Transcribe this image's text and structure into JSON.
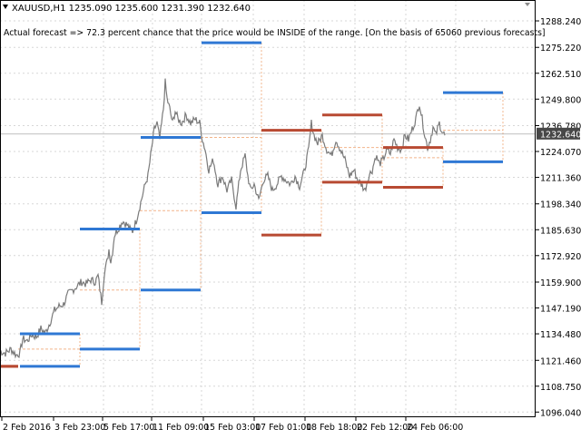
{
  "header": {
    "symbol_line": "XAUUSD,H1  1235.090 1235.600 1231.390 1232.640",
    "forecast_text": "Actual forecast => 72.3 percent chance that the price would be INSIDE of the range. [On the basis of 65060 previous forecasts]"
  },
  "colors": {
    "price_line": "#7a7a7a",
    "range_blue": "#2f78d4",
    "range_red": "#b84a32",
    "connector": "#f2b48a",
    "grid": "#d7d7d7",
    "current_price_bg": "#474747"
  },
  "icons": [
    "dropdown-triangle-icon",
    "chart-shift-arrow-icon"
  ],
  "current_price": "1232.640",
  "chart_data": {
    "type": "line",
    "symbol": "XAUUSD",
    "timeframe": "H1",
    "ylim": [
      1093.5,
      1298.5
    ],
    "y_ticks": [
      "1288.240",
      "1275.220",
      "1262.510",
      "1249.800",
      "1236.780",
      "1224.070",
      "1211.360",
      "1198.340",
      "1185.630",
      "1172.920",
      "1159.900",
      "1147.190",
      "1134.480",
      "1121.460",
      "1108.750",
      "1096.040"
    ],
    "x_ticks": [
      "2 Feb 2016",
      "3 Feb 23:00",
      "5 Feb 17:00",
      "11 Feb 09:00",
      "15 Feb 03:00",
      "17 Feb 01:00",
      "18 Feb 18:00",
      "22 Feb 12:00",
      "24 Feb 06:00"
    ],
    "price_path": [
      [
        0,
        1126
      ],
      [
        6,
        1125
      ],
      [
        12,
        1127
      ],
      [
        18,
        1124
      ],
      [
        22,
        1125
      ],
      [
        25,
        1132
      ],
      [
        30,
        1131
      ],
      [
        35,
        1134
      ],
      [
        40,
        1133
      ],
      [
        45,
        1137
      ],
      [
        50,
        1135
      ],
      [
        55,
        1140
      ],
      [
        60,
        1146
      ],
      [
        65,
        1148
      ],
      [
        70,
        1149
      ],
      [
        75,
        1154
      ],
      [
        80,
        1156
      ],
      [
        85,
        1158
      ],
      [
        90,
        1160
      ],
      [
        95,
        1159
      ],
      [
        100,
        1161
      ],
      [
        105,
        1160
      ],
      [
        108,
        1163
      ],
      [
        112,
        1150
      ],
      [
        115,
        1165
      ],
      [
        118,
        1170
      ],
      [
        120,
        1176
      ],
      [
        122,
        1170
      ],
      [
        124,
        1175
      ],
      [
        126,
        1183
      ],
      [
        130,
        1186
      ],
      [
        135,
        1190
      ],
      [
        140,
        1188
      ],
      [
        143,
        1186
      ],
      [
        146,
        1185
      ],
      [
        150,
        1190
      ],
      [
        155,
        1199
      ],
      [
        160,
        1208
      ],
      [
        163,
        1212
      ],
      [
        166,
        1222
      ],
      [
        170,
        1235
      ],
      [
        173,
        1238
      ],
      [
        176,
        1230
      ],
      [
        180,
        1245
      ],
      [
        182,
        1258
      ],
      [
        184,
        1250
      ],
      [
        187,
        1245
      ],
      [
        190,
        1238
      ],
      [
        193,
        1244
      ],
      [
        196,
        1240
      ],
      [
        200,
        1238
      ],
      [
        205,
        1242
      ],
      [
        210,
        1238
      ],
      [
        215,
        1240
      ],
      [
        220,
        1238
      ],
      [
        223,
        1230
      ],
      [
        226,
        1225
      ],
      [
        230,
        1215
      ],
      [
        235,
        1220
      ],
      [
        240,
        1208
      ],
      [
        245,
        1212
      ],
      [
        250,
        1205
      ],
      [
        255,
        1210
      ],
      [
        260,
        1197
      ],
      [
        265,
        1215
      ],
      [
        270,
        1222
      ],
      [
        273,
        1212
      ],
      [
        276,
        1205
      ],
      [
        280,
        1208
      ],
      [
        285,
        1200
      ],
      [
        290,
        1210
      ],
      [
        295,
        1212
      ],
      [
        300,
        1205
      ],
      [
        305,
        1208
      ],
      [
        310,
        1212
      ],
      [
        315,
        1210
      ],
      [
        320,
        1208
      ],
      [
        325,
        1212
      ],
      [
        330,
        1207
      ],
      [
        335,
        1214
      ],
      [
        340,
        1225
      ],
      [
        343,
        1238
      ],
      [
        346,
        1232
      ],
      [
        350,
        1228
      ],
      [
        355,
        1232
      ],
      [
        360,
        1225
      ],
      [
        365,
        1222
      ],
      [
        370,
        1230
      ],
      [
        375,
        1225
      ],
      [
        380,
        1220
      ],
      [
        385,
        1212
      ],
      [
        390,
        1215
      ],
      [
        394,
        1210
      ],
      [
        398,
        1208
      ],
      [
        402,
        1205
      ],
      [
        406,
        1212
      ],
      [
        410,
        1215
      ],
      [
        414,
        1222
      ],
      [
        418,
        1218
      ],
      [
        422,
        1220
      ],
      [
        426,
        1225
      ],
      [
        430,
        1223
      ],
      [
        434,
        1230
      ],
      [
        438,
        1226
      ],
      [
        442,
        1225
      ],
      [
        446,
        1232
      ],
      [
        450,
        1230
      ],
      [
        454,
        1235
      ],
      [
        458,
        1240
      ],
      [
        462,
        1248
      ],
      [
        465,
        1240
      ],
      [
        468,
        1232
      ],
      [
        471,
        1226
      ],
      [
        474,
        1230
      ],
      [
        477,
        1236
      ],
      [
        480,
        1232
      ],
      [
        484,
        1238
      ],
      [
        487,
        1234
      ],
      [
        490,
        1232
      ]
    ],
    "forecast_ranges": [
      {
        "upper": 1118.5,
        "lower": 1118.5,
        "upper_color": "red",
        "lower_color": "red"
      },
      {
        "upper": 1134.5,
        "lower": 1118.5,
        "upper_color": "blue",
        "lower_color": "blue"
      },
      {
        "upper": 1186,
        "lower": 1127,
        "upper_color": "blue",
        "lower_color": "blue"
      },
      {
        "upper": 1231,
        "lower": 1156,
        "upper_color": "blue",
        "lower_color": "blue"
      },
      {
        "upper": 1277.5,
        "lower": 1194,
        "upper_color": "blue",
        "lower_color": "blue"
      },
      {
        "upper": 1234.5,
        "lower": 1183,
        "upper_color": "red",
        "lower_color": "red"
      },
      {
        "upper": 1242,
        "lower": 1209,
        "upper_color": "red",
        "lower_color": "red"
      },
      {
        "upper": 1226,
        "lower": 1206.5,
        "upper_color": "red",
        "lower_color": "red"
      },
      {
        "upper": 1253,
        "lower": 1219,
        "upper_color": "blue",
        "lower_color": "blue"
      }
    ],
    "connector_levels": [
      1127,
      1156,
      1195,
      1231,
      1234.5,
      1226,
      1221,
      1234.5
    ]
  }
}
